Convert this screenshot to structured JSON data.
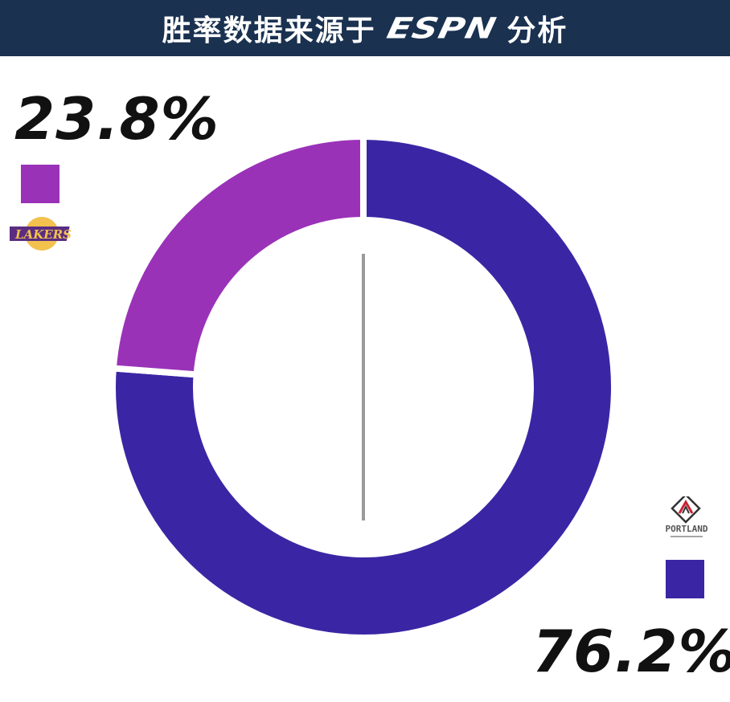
{
  "header": {
    "title_prefix": "胜率数据来源于",
    "brand": "ESPN",
    "title_suffix": "分析"
  },
  "teams": {
    "left": {
      "logo": "lakers-logo",
      "logo_text": "LAKERS"
    },
    "right": {
      "logo": "trail-blazers-logo",
      "logo_text": "PORTLAND"
    }
  },
  "chart_data": {
    "type": "pie",
    "donut": true,
    "categories": [
      "",
      ""
    ],
    "values": [
      23.8,
      76.2
    ],
    "labels": [
      "23.8%",
      "76.2%"
    ],
    "colors": [
      "#9a32b8",
      "#3a26a4"
    ],
    "title": "",
    "legend": "none"
  }
}
